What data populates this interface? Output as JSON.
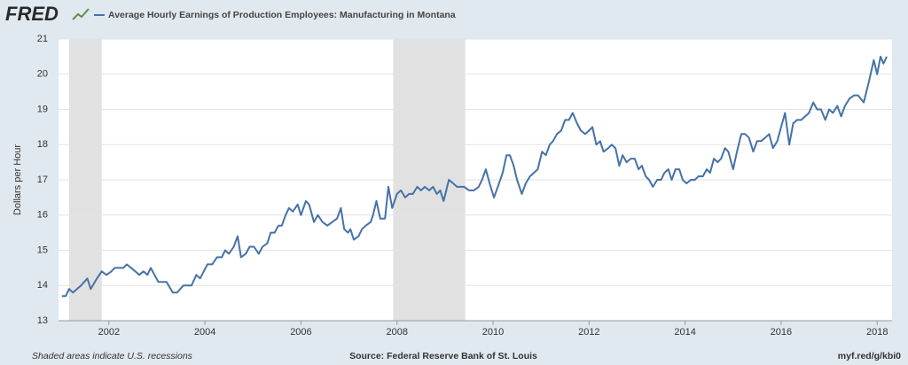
{
  "chart_data": {
    "type": "line",
    "logo": "FRED",
    "y_label": "Dollars per Hour",
    "note": "Shaded areas indicate U.S. recessions",
    "source": "Source: Federal Reserve Bank of St. Louis",
    "url": "myf.red/g/kbi0",
    "xlim": [
      2000.95,
      2018.31
    ],
    "xticks": [
      2002,
      2004,
      2006,
      2008,
      2010,
      2012,
      2014,
      2016,
      2018
    ],
    "ylim": [
      13,
      21
    ],
    "yticks": [
      13,
      14,
      15,
      16,
      17,
      18,
      19,
      20,
      21
    ],
    "grid": true,
    "recessions": [
      [
        2001.17,
        2001.85
      ],
      [
        2007.92,
        2009.42
      ]
    ],
    "recession_color": "#e1e1e1",
    "x": [
      2001.02,
      2001.1,
      2001.17,
      2001.25,
      2001.42,
      2001.55,
      2001.62,
      2001.75,
      2001.85,
      2001.95,
      2002.05,
      2002.12,
      2002.3,
      2002.37,
      2002.55,
      2002.63,
      2002.72,
      2002.8,
      2002.87,
      2002.95,
      2003.03,
      2003.2,
      2003.33,
      2003.42,
      2003.55,
      2003.72,
      2003.82,
      2003.9,
      2004.05,
      2004.15,
      2004.25,
      2004.35,
      2004.42,
      2004.5,
      2004.6,
      2004.68,
      2004.75,
      2004.85,
      2004.93,
      2005.02,
      2005.12,
      2005.2,
      2005.3,
      2005.37,
      2005.45,
      2005.53,
      2005.6,
      2005.68,
      2005.75,
      2005.83,
      2005.93,
      2006.0,
      2006.1,
      2006.17,
      2006.27,
      2006.35,
      2006.45,
      2006.55,
      2006.65,
      2006.75,
      2006.83,
      2006.9,
      2006.98,
      2007.03,
      2007.1,
      2007.2,
      2007.27,
      2007.35,
      2007.45,
      2007.5,
      2007.57,
      2007.65,
      2007.75,
      2007.82,
      2007.9,
      2008.0,
      2008.08,
      2008.17,
      2008.25,
      2008.33,
      2008.42,
      2008.5,
      2008.58,
      2008.67,
      2008.75,
      2008.83,
      2008.9,
      2008.97,
      2009.08,
      2009.17,
      2009.25,
      2009.4,
      2009.5,
      2009.6,
      2009.7,
      2009.77,
      2009.85,
      2009.93,
      2010.02,
      2010.1,
      2010.2,
      2010.28,
      2010.35,
      2010.43,
      2010.5,
      2010.6,
      2010.68,
      2010.77,
      2010.85,
      2010.93,
      2011.02,
      2011.1,
      2011.18,
      2011.25,
      2011.33,
      2011.42,
      2011.5,
      2011.58,
      2011.66,
      2011.75,
      2011.83,
      2011.92,
      2012.0,
      2012.07,
      2012.15,
      2012.23,
      2012.3,
      2012.4,
      2012.47,
      2012.55,
      2012.63,
      2012.7,
      2012.78,
      2012.87,
      2012.95,
      2013.03,
      2013.1,
      2013.18,
      2013.25,
      2013.33,
      2013.42,
      2013.5,
      2013.57,
      2013.65,
      2013.72,
      2013.8,
      2013.88,
      2013.95,
      2014.03,
      2014.12,
      2014.2,
      2014.28,
      2014.37,
      2014.45,
      2014.52,
      2014.6,
      2014.68,
      2014.75,
      2014.83,
      2014.9,
      2015.0,
      2015.08,
      2015.17,
      2015.25,
      2015.33,
      2015.42,
      2015.5,
      2015.58,
      2015.67,
      2015.75,
      2015.83,
      2015.92,
      2016.0,
      2016.08,
      2016.17,
      2016.25,
      2016.33,
      2016.42,
      2016.5,
      2016.58,
      2016.67,
      2016.75,
      2016.83,
      2016.92,
      2017.0,
      2017.08,
      2017.17,
      2017.25,
      2017.33,
      2017.42,
      2017.52,
      2017.6,
      2017.72,
      2017.83,
      2017.93,
      2018.0,
      2018.07,
      2018.13,
      2018.2
    ],
    "series": [
      {
        "name": "Average Hourly Earnings of Production Employees: Manufacturing in Montana",
        "color": "#4572a7",
        "values": [
          13.7,
          13.7,
          13.9,
          13.8,
          14.0,
          14.2,
          13.9,
          14.2,
          14.4,
          14.3,
          14.4,
          14.5,
          14.5,
          14.6,
          14.4,
          14.3,
          14.4,
          14.3,
          14.5,
          14.3,
          14.1,
          14.1,
          13.8,
          13.8,
          14.0,
          14.0,
          14.3,
          14.2,
          14.6,
          14.6,
          14.8,
          14.8,
          15.0,
          14.9,
          15.1,
          15.4,
          14.8,
          14.9,
          15.1,
          15.1,
          14.9,
          15.1,
          15.2,
          15.5,
          15.5,
          15.7,
          15.7,
          16.0,
          16.2,
          16.1,
          16.3,
          16.0,
          16.4,
          16.3,
          15.8,
          16.0,
          15.8,
          15.7,
          15.8,
          15.9,
          16.2,
          15.6,
          15.5,
          15.6,
          15.3,
          15.4,
          15.6,
          15.7,
          15.8,
          16.0,
          16.4,
          15.9,
          15.9,
          16.8,
          16.2,
          16.6,
          16.7,
          16.5,
          16.6,
          16.6,
          16.8,
          16.7,
          16.8,
          16.7,
          16.8,
          16.6,
          16.7,
          16.4,
          17.0,
          16.9,
          16.8,
          16.8,
          16.7,
          16.7,
          16.8,
          17.0,
          17.3,
          16.9,
          16.5,
          16.8,
          17.2,
          17.7,
          17.7,
          17.4,
          17.0,
          16.6,
          16.9,
          17.1,
          17.2,
          17.3,
          17.8,
          17.7,
          18.0,
          18.1,
          18.3,
          18.4,
          18.7,
          18.7,
          18.9,
          18.6,
          18.4,
          18.3,
          18.4,
          18.5,
          18.0,
          18.1,
          17.8,
          17.9,
          18.0,
          17.9,
          17.4,
          17.7,
          17.5,
          17.6,
          17.6,
          17.3,
          17.4,
          17.1,
          17.0,
          16.8,
          17.0,
          17.0,
          17.2,
          17.3,
          17.0,
          17.3,
          17.3,
          17.0,
          16.9,
          17.0,
          17.0,
          17.1,
          17.1,
          17.3,
          17.2,
          17.6,
          17.5,
          17.6,
          17.9,
          17.8,
          17.3,
          17.8,
          18.3,
          18.3,
          18.2,
          17.8,
          18.1,
          18.1,
          18.2,
          18.3,
          17.9,
          18.1,
          18.5,
          18.9,
          18.0,
          18.6,
          18.7,
          18.7,
          18.8,
          18.9,
          19.2,
          19.0,
          19.0,
          18.7,
          19.0,
          18.9,
          19.1,
          18.8,
          19.1,
          19.3,
          19.4,
          19.4,
          19.2,
          19.8,
          20.4,
          20.0,
          20.5,
          20.3,
          20.5
        ]
      }
    ]
  }
}
